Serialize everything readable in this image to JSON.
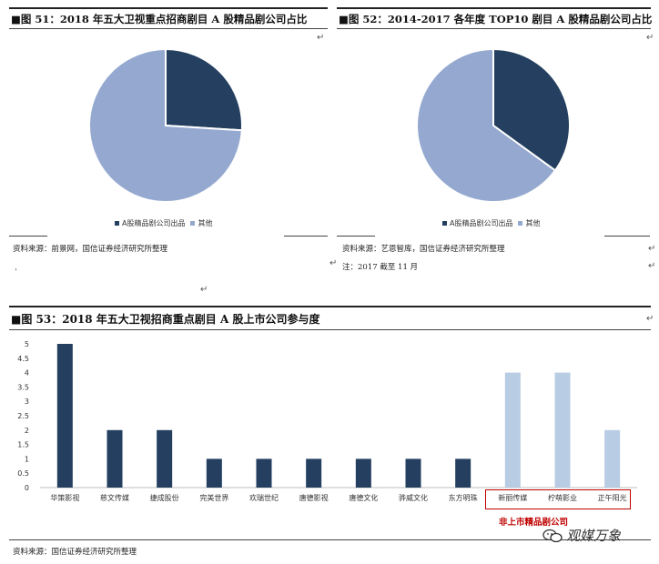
{
  "figures": [
    {
      "title": "图 51：2018 年五大卫视重点招商剧目 A 股精品剧公司占比",
      "legend": [
        "A股精品剧公司出品",
        "其他"
      ],
      "source": "资料来源：前景网，国信证券经济研究所整理",
      "note": "",
      "colors": [
        "#243f60",
        "#95a9d0"
      ]
    },
    {
      "title": "图 52：2014-2017 各年度 TOP10 剧目 A 股精品剧公司占比",
      "legend": [
        "A股精品剧公司出品",
        "其他"
      ],
      "source": "资料来源：艺恩智库，国信证券经济研究所整理",
      "note": "注：2017 截至 11 月",
      "colors": [
        "#243f60",
        "#95a9d0"
      ]
    },
    {
      "title": "图 53：2018 年五大卫视招商重点剧目 A 股上市公司参与度",
      "source": "资料来源：国信证券经济研究所整理",
      "annotation": "非上市精品剧公司"
    }
  ],
  "chart_data": [
    {
      "type": "pie",
      "labels": [
        "A股精品剧公司出品",
        "其他"
      ],
      "values": [
        0.26,
        0.74
      ],
      "colors": [
        "#243f60",
        "#95a9d0"
      ]
    },
    {
      "type": "pie",
      "labels": [
        "A股精品剧公司出品",
        "其他"
      ],
      "values": [
        0.35,
        0.65
      ],
      "colors": [
        "#243f60",
        "#95a9d0"
      ]
    },
    {
      "type": "bar",
      "categories": [
        "华策影视",
        "慈文传媒",
        "捷成股份",
        "完美世界",
        "欢瑞世纪",
        "唐德影视",
        "唐德文化",
        "骅威文化",
        "东方明珠",
        "新丽传媒",
        "柠萌影业",
        "正午阳光"
      ],
      "values": [
        5,
        2,
        2,
        1,
        1,
        1,
        1,
        1,
        1,
        4,
        4,
        2
      ],
      "bar_colors": [
        "#243f60",
        "#243f60",
        "#243f60",
        "#243f60",
        "#243f60",
        "#243f60",
        "#243f60",
        "#243f60",
        "#243f60",
        "#b8cce4",
        "#b8cce4",
        "#b8cce4"
      ],
      "yticks": [
        "0",
        "0.5",
        "1",
        "1.5",
        "2",
        "2.5",
        "3",
        "3.5",
        "4",
        "4.5",
        "5"
      ],
      "ylim": [
        0,
        5
      ]
    }
  ],
  "watermark": "观媒万象",
  "return_mark": "↵"
}
